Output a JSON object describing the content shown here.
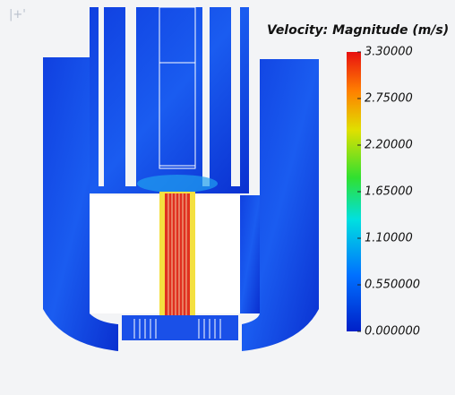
{
  "colorbar": {
    "title": "Velocity: Magnitude (m/s)",
    "ticks": [
      {
        "value": 3.3,
        "label": "3.30000"
      },
      {
        "value": 2.75,
        "label": "2.75000"
      },
      {
        "value": 2.2,
        "label": "2.20000"
      },
      {
        "value": 1.65,
        "label": "1.65000"
      },
      {
        "value": 1.1,
        "label": "1.10000"
      },
      {
        "value": 0.55,
        "label": "0.550000"
      },
      {
        "value": 0,
        "label": "0.000000"
      }
    ]
  }
}
